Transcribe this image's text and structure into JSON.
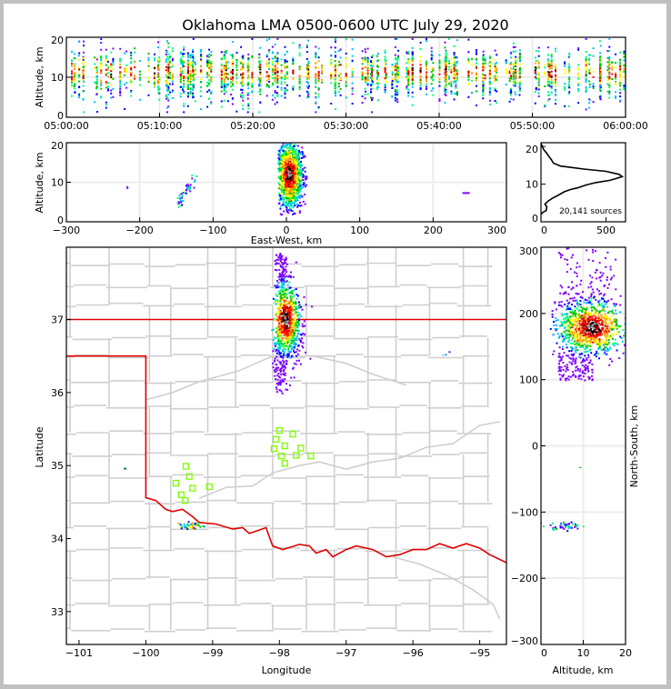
{
  "chart_data": [
    {
      "id": "time_height",
      "type": "heatmap",
      "title": "Oklahoma LMA 0500-0600 UTC July 29, 2020",
      "xlabel": "",
      "ylabel": "Altitude, km",
      "xlim": [
        "05:00:00",
        "06:00:00"
      ],
      "ylim": [
        0,
        20
      ],
      "xticks": [
        "05:00:00",
        "05:10:00",
        "05:20:00",
        "05:30:00",
        "05:40:00",
        "05:50:00",
        "06:00:00"
      ],
      "yticks": [
        "0",
        "10",
        "20"
      ],
      "grid": true,
      "description": "Time-altitude scatter of VHF sources colored by density; continuous activity 05:00-06:00 with sources mostly between 3 and 18 km, densest near 8-14 km",
      "source_altitude_range_km": [
        2,
        20
      ],
      "peak_altitude_km": 11
    },
    {
      "id": "ew_height",
      "type": "heatmap",
      "xlabel": "East-West, km",
      "ylabel": "Altitude, km",
      "xlim": [
        -300,
        300
      ],
      "ylim": [
        0,
        20
      ],
      "xticks": [
        "−300",
        "−200",
        "−100",
        "0",
        "100",
        "200",
        "300"
      ],
      "yticks": [
        "0",
        "10",
        "20"
      ],
      "grid": true,
      "clusters": [
        {
          "name": "main storm",
          "x_range_km": [
            -12,
            32
          ],
          "alt_range_km": [
            2,
            20
          ],
          "core_x_km": 3,
          "core_alt_km": 12
        },
        {
          "name": "western cell",
          "x_range_km": [
            -148,
            -122
          ],
          "alt_range_km": [
            3,
            14
          ]
        },
        {
          "name": "isolated west",
          "x_km": -218,
          "alt_km": 9
        },
        {
          "name": "isolated east",
          "x_km": 240,
          "alt_km": 7.5
        }
      ]
    },
    {
      "id": "altitude_histogram",
      "type": "line",
      "xlim": [
        0,
        650
      ],
      "ylim": [
        0,
        21
      ],
      "xticks": [
        "0",
        "500"
      ],
      "yticks": [
        "0",
        "10",
        "20"
      ],
      "annotation": "20,141 sources",
      "x": [
        0,
        15,
        40,
        45,
        30,
        55,
        85,
        130,
        180,
        230,
        280,
        350,
        420,
        530,
        590,
        625,
        600,
        500,
        330,
        150,
        95,
        80,
        60,
        40,
        20,
        10,
        0
      ],
      "y": [
        2,
        2.5,
        3,
        4,
        4.7,
        5.5,
        6.2,
        7,
        8,
        8.6,
        9,
        9.8,
        10.4,
        11,
        11.6,
        12,
        12.6,
        13.4,
        14,
        14.8,
        15.6,
        16.5,
        17.4,
        18.4,
        19.2,
        20,
        20.8
      ]
    },
    {
      "id": "plan_view",
      "type": "scatter",
      "xlabel": "Longitude",
      "ylabel": "Latitude",
      "xlim": [
        -101.19,
        -94.6
      ],
      "ylim": [
        32.55,
        37.99
      ],
      "xticks": [
        "−101",
        "−100",
        "−99",
        "−98",
        "−97",
        "−96",
        "−95"
      ],
      "yticks": [
        "33",
        "34",
        "35",
        "36",
        "37"
      ],
      "stations": [
        {
          "lon": -99.4,
          "lat": 34.99
        },
        {
          "lon": -99.35,
          "lat": 34.85
        },
        {
          "lon": -99.55,
          "lat": 34.76
        },
        {
          "lon": -99.3,
          "lat": 34.69
        },
        {
          "lon": -99.05,
          "lat": 34.71
        },
        {
          "lon": -99.47,
          "lat": 34.6
        },
        {
          "lon": -99.41,
          "lat": 34.52
        },
        {
          "lon": -98.0,
          "lat": 35.48
        },
        {
          "lon": -97.8,
          "lat": 35.43
        },
        {
          "lon": -98.05,
          "lat": 35.36
        },
        {
          "lon": -97.92,
          "lat": 35.27
        },
        {
          "lon": -97.68,
          "lat": 35.24
        },
        {
          "lon": -98.08,
          "lat": 35.23
        },
        {
          "lon": -97.97,
          "lat": 35.13
        },
        {
          "lon": -97.75,
          "lat": 35.14
        },
        {
          "lon": -97.53,
          "lat": 35.13
        },
        {
          "lon": -97.92,
          "lat": 35.03
        }
      ],
      "clusters": [
        {
          "name": "main storm",
          "lon_range": [
            -98.08,
            -97.65
          ],
          "lat_range": [
            35.95,
            37.95
          ],
          "core_lon": -97.97,
          "core_lat": 36.97
        },
        {
          "name": "southwest cell",
          "lon": -99.35,
          "lat": 34.19
        },
        {
          "name": "west point",
          "lon": -100.33,
          "lat": 34.97
        },
        {
          "name": "east point",
          "lon": -95.52,
          "lat": 36.53
        }
      ]
    },
    {
      "id": "ns_height",
      "type": "heatmap",
      "xlabel": "Altitude, km",
      "ylabel": "North-South, km",
      "xlim": [
        0,
        20
      ],
      "ylim": [
        -300,
        300
      ],
      "xticks": [
        "0",
        "10",
        "20"
      ],
      "yticks": [
        "−300",
        "−200",
        "−100",
        "0",
        "100",
        "200",
        "300"
      ],
      "clusters": [
        {
          "name": "main storm",
          "alt_range_km": [
            2,
            20
          ],
          "ns_range_km": [
            100,
            300
          ],
          "core_alt_km": 11,
          "core_ns_km": 180
        },
        {
          "name": "southern cell",
          "alt_range_km": [
            3,
            16
          ],
          "ns_range_km": [
            -127,
            -113
          ]
        },
        {
          "name": "isolated",
          "alt_km": 9,
          "ns_km": -32
        }
      ]
    }
  ]
}
